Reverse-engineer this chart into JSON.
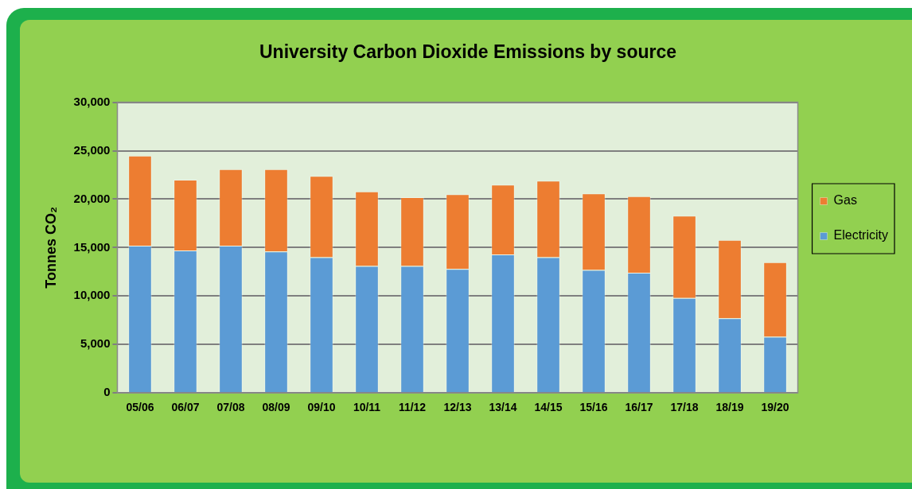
{
  "chart_data": {
    "type": "bar",
    "title": "University Carbon Dioxide Emissions by source",
    "ylabel": "Tonnes CO₂",
    "categories": [
      "05/06",
      "06/07",
      "07/08",
      "08/09",
      "09/10",
      "10/11",
      "11/12",
      "12/13",
      "13/14",
      "14/15",
      "15/16",
      "16/17",
      "17/18",
      "18/19",
      "19/20"
    ],
    "stacked": true,
    "series": [
      {
        "name": "Electricity",
        "color": "#5b9bd5",
        "values": [
          15200,
          14700,
          15200,
          14600,
          14000,
          13100,
          13100,
          12800,
          14300,
          14000,
          12700,
          12400,
          9800,
          7700,
          5800
        ]
      },
      {
        "name": "Gas",
        "color": "#ed7d31",
        "values": [
          9300,
          7300,
          7900,
          8500,
          8400,
          7700,
          7100,
          7700,
          7200,
          7900,
          7900,
          7900,
          8500,
          8100,
          7700
        ]
      }
    ],
    "ylim": [
      0,
      30000
    ],
    "yticks": [
      0,
      {
        "value": 5000,
        "label": "5,000"
      },
      {
        "value": 10000,
        "label": "10,000"
      },
      {
        "value": 15000,
        "label": "15,000"
      },
      {
        "value": 20000,
        "label": "20,000"
      },
      {
        "value": 25000,
        "label": "25,000"
      },
      {
        "value": 30000,
        "label": "30,000"
      }
    ],
    "grid": "y",
    "legend": "right"
  }
}
